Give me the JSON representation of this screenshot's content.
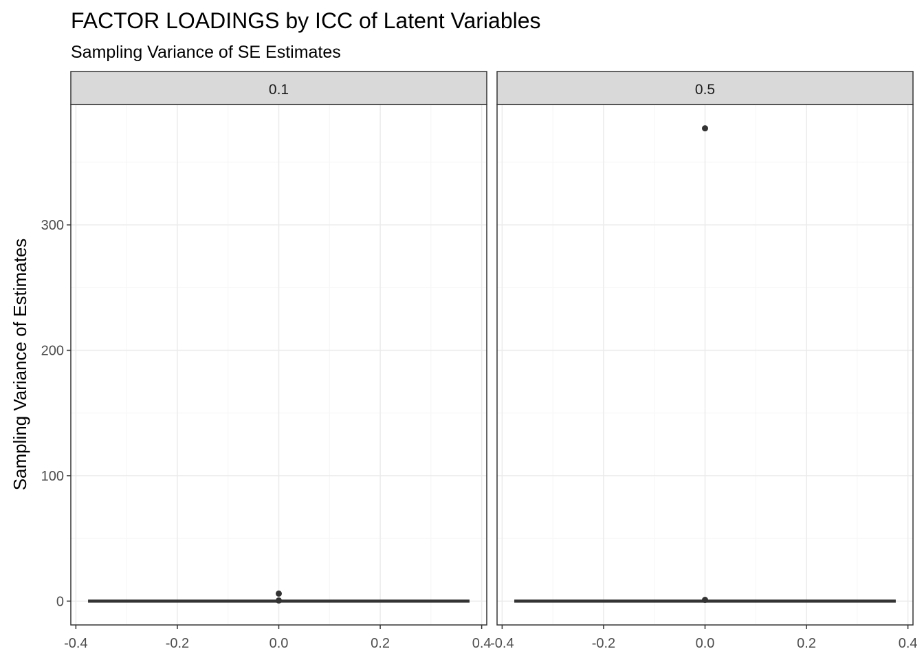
{
  "chart_data": {
    "type": "boxplot",
    "title": "FACTOR LOADINGS by ICC of Latent Variables",
    "subtitle": "Sampling Variance of SE Estimates",
    "xlabel": "",
    "ylabel": "Sampling Variance of Estimates",
    "xlim": [
      -0.41,
      0.41
    ],
    "ylim": [
      -19,
      396
    ],
    "x_ticks": [
      -0.4,
      -0.2,
      0.0,
      0.2,
      0.4
    ],
    "x_tick_labels": [
      "-0.4",
      "-0.2",
      "0.0",
      "0.2",
      "0.4"
    ],
    "y_ticks": [
      0,
      100,
      200,
      300
    ],
    "y_tick_labels": [
      "0",
      "100",
      "200",
      "300"
    ],
    "grid": true,
    "box_x_range": [
      -0.375,
      0.375
    ],
    "colors": {
      "box": "#333333",
      "panel_border": "#333333",
      "strip_fill": "#d9d9d9",
      "grid_major": "#ebebeb",
      "grid_minor": "#f5f5f5"
    },
    "panels": [
      {
        "label": "0.1",
        "box": {
          "min": 0,
          "q1": 0,
          "median": 0,
          "q3": 0,
          "max": 0
        },
        "outliers": [
          6,
          0.5
        ]
      },
      {
        "label": "0.5",
        "box": {
          "min": 0,
          "q1": 0,
          "median": 0,
          "q3": 0,
          "max": 0
        },
        "outliers": [
          377,
          1
        ]
      }
    ]
  }
}
